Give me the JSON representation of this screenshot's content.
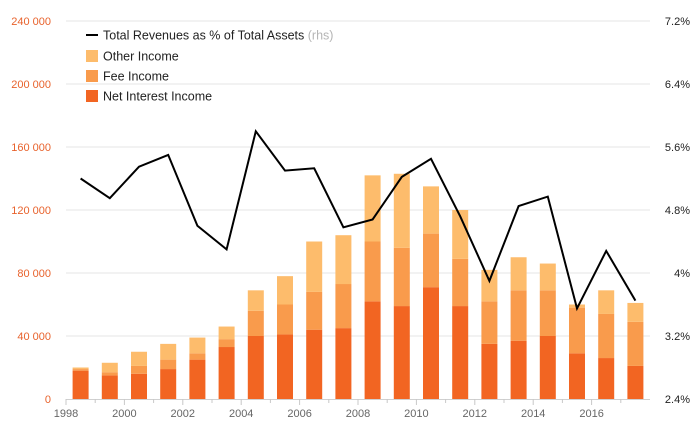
{
  "chart_data": {
    "type": "bar",
    "x": [
      1998,
      1999,
      2000,
      2001,
      2002,
      2003,
      2004,
      2005,
      2006,
      2007,
      2008,
      2009,
      2010,
      2011,
      2012,
      2013,
      2014,
      2015,
      2016,
      2017
    ],
    "series": [
      {
        "name": "Net Interest Income",
        "chart": "stacked-bar",
        "axis": "left",
        "color": "#f26522",
        "values": [
          18000,
          15000,
          16000,
          19000,
          25000,
          33000,
          40000,
          41000,
          44000,
          45000,
          62000,
          59000,
          71000,
          59000,
          35000,
          37000,
          40000,
          29000,
          26000,
          21000
        ]
      },
      {
        "name": "Fee Income",
        "chart": "stacked-bar",
        "axis": "left",
        "color": "#f99b4c",
        "values": [
          1000,
          2000,
          5000,
          6000,
          4000,
          5000,
          16000,
          19000,
          24000,
          28000,
          38000,
          37000,
          34000,
          30000,
          27000,
          32000,
          29000,
          29000,
          28000,
          28000
        ]
      },
      {
        "name": "Other Income",
        "chart": "stacked-bar",
        "axis": "left",
        "color": "#fdbc6c",
        "values": [
          1000,
          6000,
          9000,
          10000,
          10000,
          8000,
          13000,
          18000,
          32000,
          31000,
          42000,
          47000,
          30000,
          31000,
          20000,
          21000,
          17000,
          2000,
          15000,
          12000
        ]
      },
      {
        "name": "Total Revenues as % of Total Assets",
        "name_suffix": "(rhs)",
        "chart": "line",
        "axis": "right",
        "color": "#000000",
        "values": [
          5.2,
          4.95,
          5.35,
          5.5,
          4.6,
          4.3,
          5.8,
          5.3,
          5.33,
          4.58,
          4.68,
          5.22,
          5.45,
          4.72,
          3.9,
          4.85,
          4.97,
          3.55,
          4.28,
          3.65
        ]
      }
    ],
    "yleft": {
      "lim": [
        0,
        240000
      ],
      "ticks": [
        0,
        40000,
        80000,
        120000,
        160000,
        200000,
        240000
      ],
      "tick_labels": [
        "0",
        "40 000",
        "80 000",
        "120 000",
        "160 000",
        "200 000",
        "240 000"
      ],
      "color": "#e8622c"
    },
    "yright": {
      "lim": [
        2.4,
        7.2
      ],
      "ticks": [
        2.4,
        3.2,
        4.0,
        4.8,
        5.6,
        6.4,
        7.2
      ],
      "tick_labels": [
        "2.4%",
        "3.2%",
        "4%",
        "4.8%",
        "5.6%",
        "6.4%",
        "7.2%"
      ]
    },
    "xticks": [
      "1998",
      "2000",
      "2002",
      "2004",
      "2006",
      "2008",
      "2010",
      "2012",
      "2014",
      "2016"
    ],
    "grid": true,
    "legend": {
      "placement": "top-left",
      "entries": [
        {
          "label": "Total Revenues as % of Total Assets",
          "suffix": "(rhs)",
          "kind": "line",
          "color": "#000000"
        },
        {
          "label": "Other Income",
          "suffix": "",
          "kind": "box",
          "color": "#fdbc6c"
        },
        {
          "label": "Fee Income",
          "suffix": "",
          "kind": "box",
          "color": "#f99b4c"
        },
        {
          "label": "Net Interest Income",
          "suffix": "",
          "kind": "box",
          "color": "#f26522"
        }
      ]
    }
  }
}
